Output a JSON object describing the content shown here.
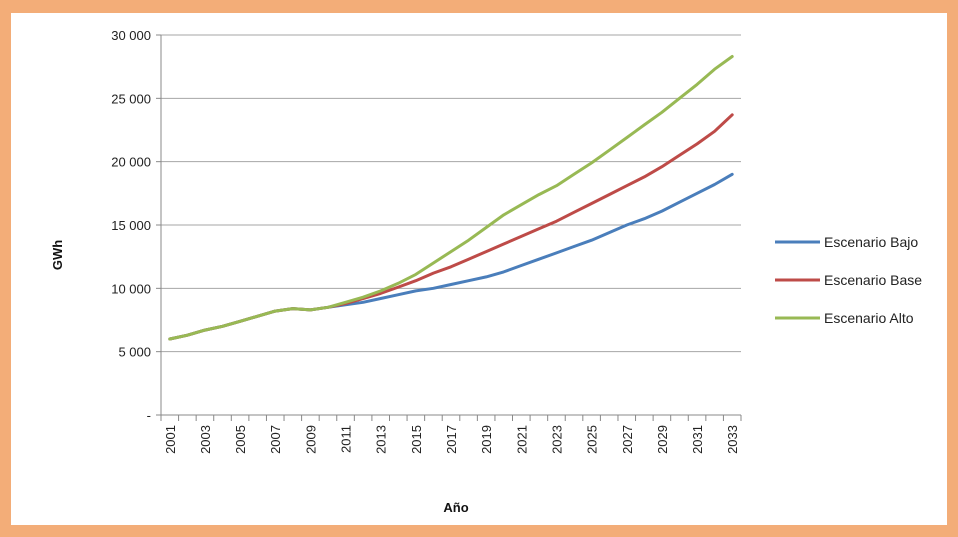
{
  "colors": {
    "background": "#f3ad78",
    "panel": "#ffffff",
    "grid": "#a6a6a6",
    "axis": "#888888"
  },
  "chart_data": {
    "type": "line",
    "title": "",
    "xlabel": "Año",
    "ylabel": "GWh",
    "x": [
      2001,
      2002,
      2003,
      2004,
      2005,
      2006,
      2007,
      2008,
      2009,
      2010,
      2011,
      2012,
      2013,
      2014,
      2015,
      2016,
      2017,
      2018,
      2019,
      2020,
      2021,
      2022,
      2023,
      2024,
      2025,
      2026,
      2027,
      2028,
      2029,
      2030,
      2031,
      2032,
      2033
    ],
    "x_tick_labels": [
      "2001",
      "2003",
      "2005",
      "2007",
      "2009",
      "2011",
      "2013",
      "2015",
      "2017",
      "2019",
      "2021",
      "2023",
      "2025",
      "2027",
      "2029",
      "2031",
      "2033"
    ],
    "ylim": [
      0,
      30000
    ],
    "y_ticks": [
      0,
      5000,
      10000,
      15000,
      20000,
      25000,
      30000
    ],
    "y_tick_labels": [
      "-",
      "5 000",
      "10 000",
      "15 000",
      "20 000",
      "25 000",
      "30 000"
    ],
    "grid": "horizontal",
    "legend_position": "right",
    "series": [
      {
        "name": "Escenario Bajo",
        "color": "#4a7ebb",
        "values": [
          6000,
          6300,
          6700,
          7000,
          7400,
          7800,
          8200,
          8400,
          8300,
          8500,
          8700,
          8900,
          9200,
          9500,
          9800,
          10000,
          10300,
          10600,
          10900,
          11300,
          11800,
          12300,
          12800,
          13300,
          13800,
          14400,
          15000,
          15500,
          16100,
          16800,
          17500,
          18200,
          19000
        ]
      },
      {
        "name": "Escenario Base",
        "color": "#be4b48",
        "values": [
          6000,
          6300,
          6700,
          7000,
          7400,
          7800,
          8200,
          8400,
          8300,
          8500,
          8800,
          9200,
          9600,
          10100,
          10600,
          11200,
          11700,
          12300,
          12900,
          13500,
          14100,
          14700,
          15300,
          16000,
          16700,
          17400,
          18100,
          18800,
          19600,
          20500,
          21400,
          22400,
          23700
        ]
      },
      {
        "name": "Escenario Alto",
        "color": "#98b954",
        "values": [
          6000,
          6300,
          6700,
          7000,
          7400,
          7800,
          8200,
          8400,
          8300,
          8500,
          8900,
          9300,
          9800,
          10400,
          11100,
          12000,
          12900,
          13800,
          14800,
          15800,
          16600,
          17400,
          18100,
          19000,
          19900,
          20900,
          21900,
          22900,
          23900,
          25000,
          26100,
          27300,
          28300
        ]
      }
    ]
  }
}
